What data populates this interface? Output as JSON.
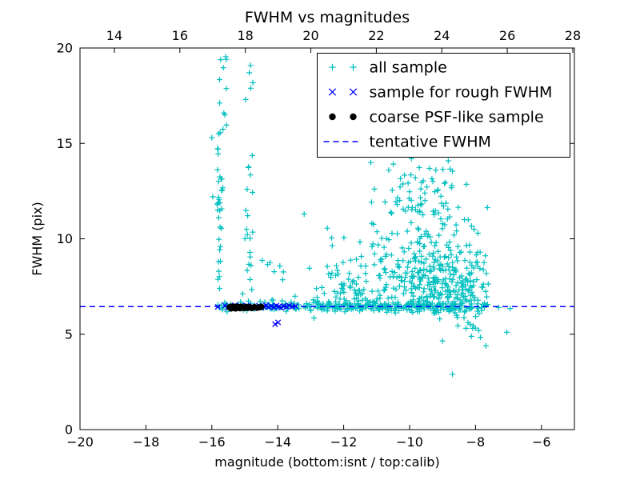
{
  "title": "FWHM vs magnitudes",
  "axes": {
    "xlabel": "magnitude (bottom:isnt / top:calib)",
    "ylabel": "FWHM (pix)",
    "x_bottom": {
      "range": [
        -20,
        -5
      ],
      "ticks": [
        -20,
        -18,
        -16,
        -14,
        -12,
        -10,
        -8,
        -6
      ]
    },
    "x_top": {
      "range": [
        12.95,
        28.05
      ],
      "ticks": [
        14,
        16,
        18,
        20,
        22,
        24,
        26,
        28
      ]
    },
    "y": {
      "range": [
        0,
        20
      ],
      "ticks": [
        0,
        5,
        10,
        15,
        20
      ]
    }
  },
  "colors": {
    "all_sample": "#00bfbf",
    "rough_fwhm": "#0000ff",
    "psf_like": "#000000",
    "tentative_line": "#0000ff",
    "axes": "#000000",
    "background": "#ffffff"
  },
  "legend": {
    "position": "upper-right",
    "entries": [
      {
        "label": "all sample",
        "marker": "plus",
        "color": "#00bfbf"
      },
      {
        "label": "sample for rough FWHM",
        "marker": "x",
        "color": "#0000ff"
      },
      {
        "label": "coarse PSF-like sample",
        "marker": "dot",
        "color": "#000000"
      },
      {
        "label": "tentative FWHM",
        "marker": "dashed-line",
        "color": "#0000ff"
      }
    ]
  },
  "chart_data": {
    "type": "scatter",
    "title": "FWHM vs magnitudes",
    "xlabel": "magnitude (bottom:isnt / top:calib)",
    "ylabel": "FWHM (pix)",
    "xlim": [
      -20,
      -5
    ],
    "ylim": [
      0,
      20
    ],
    "top_axis_lim": [
      12.95,
      28.05
    ],
    "tentative_fwhm_y": 6.45,
    "series": [
      {
        "name": "all sample",
        "marker": "plus",
        "color": "#00bfbf",
        "seed": 42,
        "points": [
          [
            -16.0,
            15.3
          ],
          [
            -15.97,
            12.2
          ],
          [
            -13.2,
            11.3
          ],
          [
            -12.9,
            5.85
          ],
          [
            -8.7,
            2.9
          ],
          [
            -9.0,
            4.65
          ],
          [
            -7.9,
            5.2
          ],
          [
            -7.3,
            6.4
          ],
          [
            -7.05,
            5.1
          ],
          [
            -6.95,
            6.35
          ]
        ],
        "clusters": [
          {
            "count": 200,
            "x": {
              "dist": "uniform",
              "a": -15.85,
              "b": -7.6
            },
            "y": {
              "dist": "normal",
              "mu": 6.45,
              "sigma": 0.12
            }
          },
          {
            "count": 90,
            "x": {
              "dist": "uniform",
              "a": -15.6,
              "b": -9.0
            },
            "y": {
              "dist": "normal",
              "mu": 6.45,
              "sigma": 0.1
            }
          },
          {
            "count": 30,
            "x": {
              "dist": "normal",
              "mu": -15.78,
              "sigma": 0.05
            },
            "y": {
              "dist": "uniform",
              "a": 6.6,
              "b": 14.8
            }
          },
          {
            "count": 14,
            "x": {
              "dist": "normal",
              "mu": -15.7,
              "sigma": 0.09
            },
            "y": {
              "dist": "uniform",
              "a": 14.5,
              "b": 19.6
            }
          },
          {
            "count": 20,
            "x": {
              "dist": "normal",
              "mu": -14.88,
              "sigma": 0.07
            },
            "y": {
              "dist": "uniform",
              "a": 6.6,
              "b": 14.0
            }
          },
          {
            "count": 6,
            "x": {
              "dist": "normal",
              "mu": -14.82,
              "sigma": 0.1
            },
            "y": {
              "dist": "uniform",
              "a": 14.0,
              "b": 19.2
            }
          },
          {
            "count": 18,
            "x": {
              "dist": "uniform",
              "a": -14.6,
              "b": -12.6
            },
            "y": {
              "dist": "halfnormal",
              "base": 6.6,
              "sigma": 1.2
            },
            "clip": {
              "ymax": 11.5
            }
          },
          {
            "count": 380,
            "x": {
              "dist": "normal",
              "mu": -9.2,
              "sigma": 1.05
            },
            "y": {
              "dist": "halfnormal",
              "base": 6.1,
              "sigma": 2.6
            },
            "clip": {
              "xmin": -12.6,
              "xmax": -7.6,
              "ymax": 14.7
            }
          },
          {
            "count": 80,
            "x": {
              "dist": "uniform",
              "a": -12.6,
              "b": -10.6
            },
            "y": {
              "dist": "halfnormal",
              "base": 6.3,
              "sigma": 2.0
            },
            "clip": {
              "ymax": 12.6
            }
          },
          {
            "count": 60,
            "x": {
              "dist": "normal",
              "mu": -9.7,
              "sigma": 0.65
            },
            "y": {
              "dist": "uniform",
              "a": 11.2,
              "b": 14.6
            }
          },
          {
            "count": 40,
            "x": {
              "dist": "normal",
              "mu": -8.3,
              "sigma": 0.4
            },
            "y": {
              "dist": "normal",
              "mu": 6.2,
              "sigma": 0.9
            },
            "clip": {
              "ymin": 4.2
            }
          }
        ]
      },
      {
        "name": "sample for rough FWHM",
        "marker": "x",
        "color": "#0000ff",
        "points": [
          [
            -15.82,
            6.43
          ],
          [
            -15.6,
            6.5
          ],
          [
            -15.52,
            6.38
          ],
          [
            -15.38,
            6.46
          ],
          [
            -15.3,
            6.52
          ],
          [
            -15.22,
            6.4
          ],
          [
            -15.12,
            6.47
          ],
          [
            -15.02,
            6.43
          ],
          [
            -14.95,
            6.5
          ],
          [
            -14.86,
            6.41
          ],
          [
            -14.76,
            6.47
          ],
          [
            -14.66,
            6.42
          ],
          [
            -14.57,
            6.5
          ],
          [
            -14.5,
            6.39
          ],
          [
            -14.43,
            6.45
          ],
          [
            -14.36,
            6.51
          ],
          [
            -14.28,
            6.42
          ],
          [
            -14.2,
            6.47
          ],
          [
            -14.12,
            6.41
          ],
          [
            -14.04,
            6.5
          ],
          [
            -13.97,
            6.45
          ],
          [
            -13.9,
            6.39
          ],
          [
            -13.82,
            6.47
          ],
          [
            -13.74,
            6.43
          ],
          [
            -13.65,
            6.5
          ],
          [
            -13.56,
            6.44
          ],
          [
            -13.46,
            6.47
          ],
          [
            -14.08,
            5.52
          ],
          [
            -13.99,
            5.62
          ]
        ]
      },
      {
        "name": "coarse PSF-like sample",
        "marker": "dot",
        "color": "#000000",
        "points": [
          [
            -15.46,
            6.41
          ],
          [
            -15.42,
            6.35
          ],
          [
            -15.39,
            6.45
          ],
          [
            -15.34,
            6.38
          ],
          [
            -15.31,
            6.43
          ],
          [
            -15.28,
            6.35
          ],
          [
            -15.25,
            6.44
          ],
          [
            -15.21,
            6.38
          ],
          [
            -15.18,
            6.42
          ],
          [
            -15.14,
            6.36
          ],
          [
            -15.11,
            6.44
          ],
          [
            -15.06,
            6.4
          ],
          [
            -15.01,
            6.37
          ],
          [
            -14.96,
            6.43
          ],
          [
            -14.91,
            6.38
          ],
          [
            -14.86,
            6.42
          ],
          [
            -14.79,
            6.37
          ],
          [
            -14.71,
            6.42
          ],
          [
            -14.63,
            6.38
          ],
          [
            -14.56,
            6.41
          ],
          [
            -14.5,
            6.43
          ]
        ]
      },
      {
        "name": "tentative FWHM",
        "type": "hline",
        "style": "dashed",
        "color": "#0000ff",
        "y": 6.45
      }
    ]
  }
}
